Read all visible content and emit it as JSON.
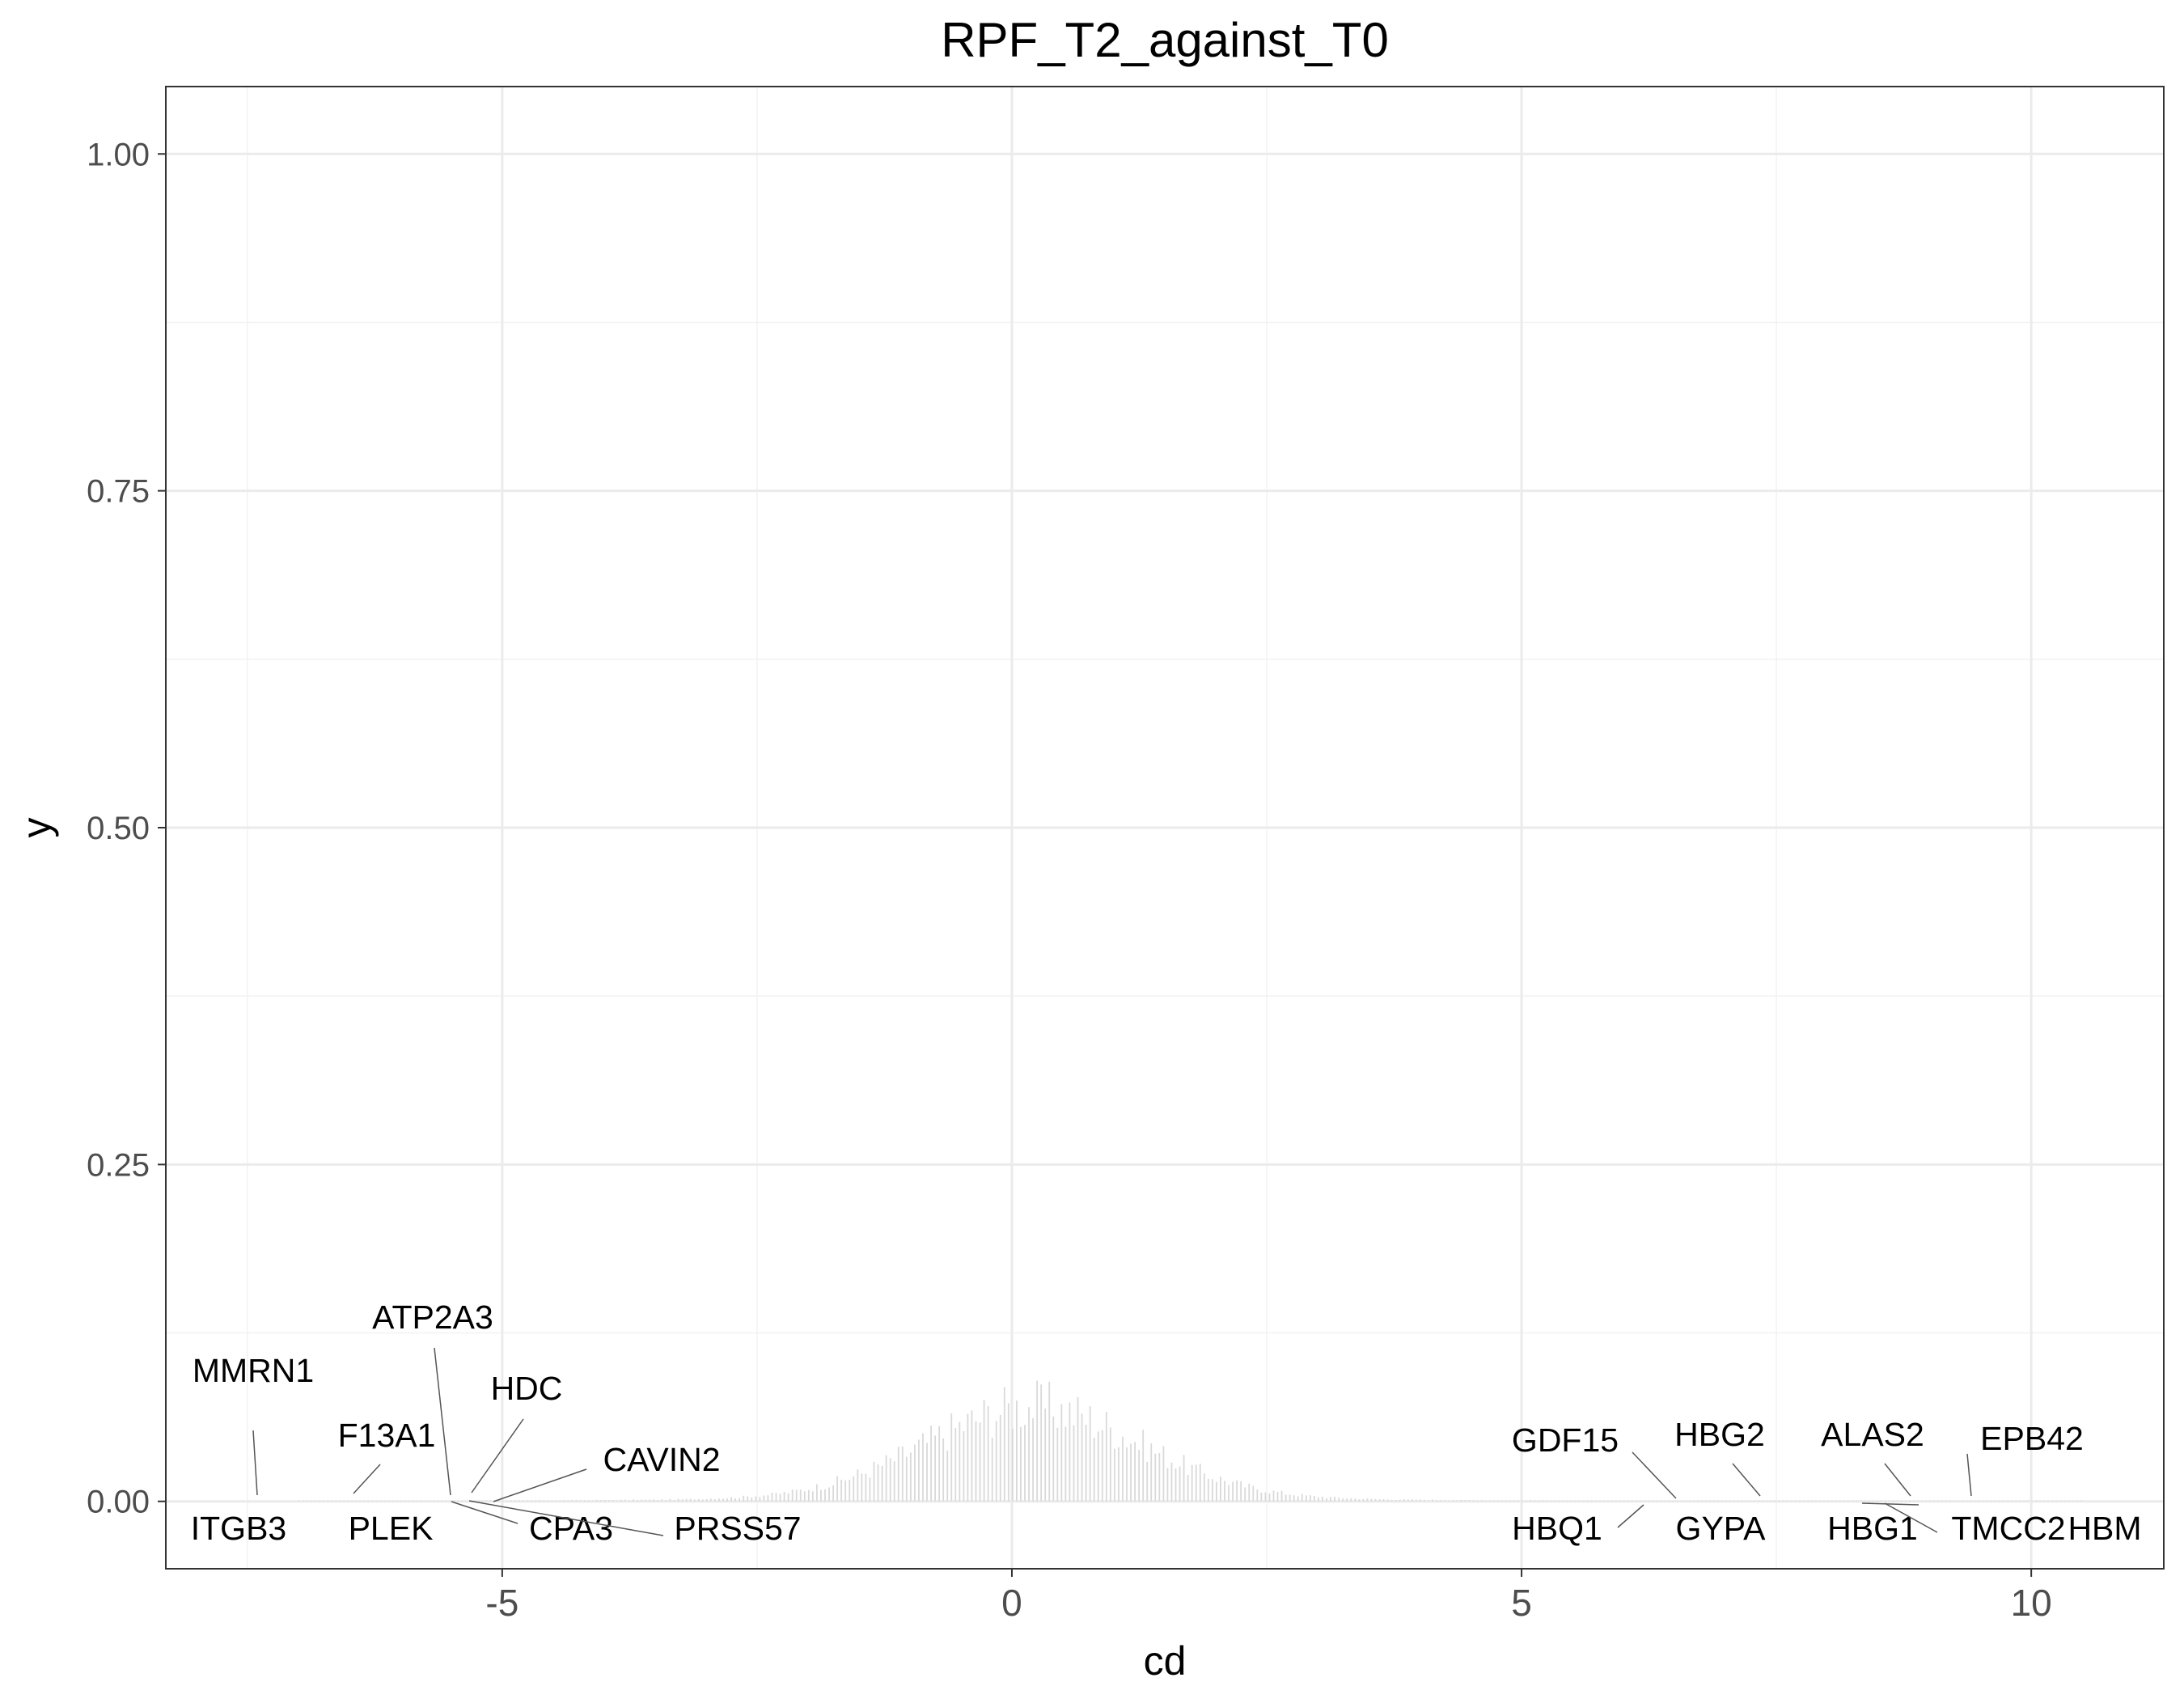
{
  "chart_data": {
    "type": "bar",
    "title": "RPF_T2_against_T0",
    "xlabel": "cd",
    "ylabel": "y",
    "xlim": [
      -8.3,
      11.3
    ],
    "ylim": [
      -0.05,
      1.05
    ],
    "xticks": [
      -5,
      0,
      5,
      10
    ],
    "xtick_labels": [
      "-5",
      "0",
      "5",
      "10"
    ],
    "yticks": [
      0,
      0.25,
      0.5,
      0.75,
      1
    ],
    "ytick_labels": [
      "0.00",
      "0.25",
      "0.50",
      "0.75",
      "1.00"
    ],
    "grid": true,
    "bar_color": "#d9d9d9",
    "distribution": {
      "description": "histogram of cd values",
      "bin_width": 0.04,
      "x_range": [
        -7.0,
        10.5
      ],
      "peak_center": 0.2,
      "peak_height": 0.065
    },
    "annotations": [
      {
        "label": "MMRN1",
        "x": -7.2,
        "y": 0
      },
      {
        "label": "ITGB3",
        "x": -7.2,
        "y": 0
      },
      {
        "label": "F13A1",
        "x": -6.2,
        "y": 0
      },
      {
        "label": "PLEK",
        "x": -6.0,
        "y": 0
      },
      {
        "label": "ATP2A3",
        "x": -5.35,
        "y": 0
      },
      {
        "label": "HDC",
        "x": -5.2,
        "y": 0
      },
      {
        "label": "CPA3",
        "x": -5.3,
        "y": 0
      },
      {
        "label": "PRSS57",
        "x": -5.15,
        "y": 0
      },
      {
        "label": "CAVIN2",
        "x": -4.95,
        "y": 0
      },
      {
        "label": "GDF15",
        "x": 6.6,
        "y": 0
      },
      {
        "label": "HBQ1",
        "x": 6.2,
        "y": 0
      },
      {
        "label": "HBG2",
        "x": 7.4,
        "y": 0
      },
      {
        "label": "GYPA",
        "x": 6.6,
        "y": 0
      },
      {
        "label": "ALAS2",
        "x": 8.8,
        "y": 0
      },
      {
        "label": "HBG1",
        "x": 8.3,
        "y": 0
      },
      {
        "label": "EPB42",
        "x": 9.4,
        "y": 0
      },
      {
        "label": "TMCC2",
        "x": 8.5,
        "y": 0
      },
      {
        "label": "HBM",
        "x": 10.4,
        "y": 0
      }
    ]
  }
}
